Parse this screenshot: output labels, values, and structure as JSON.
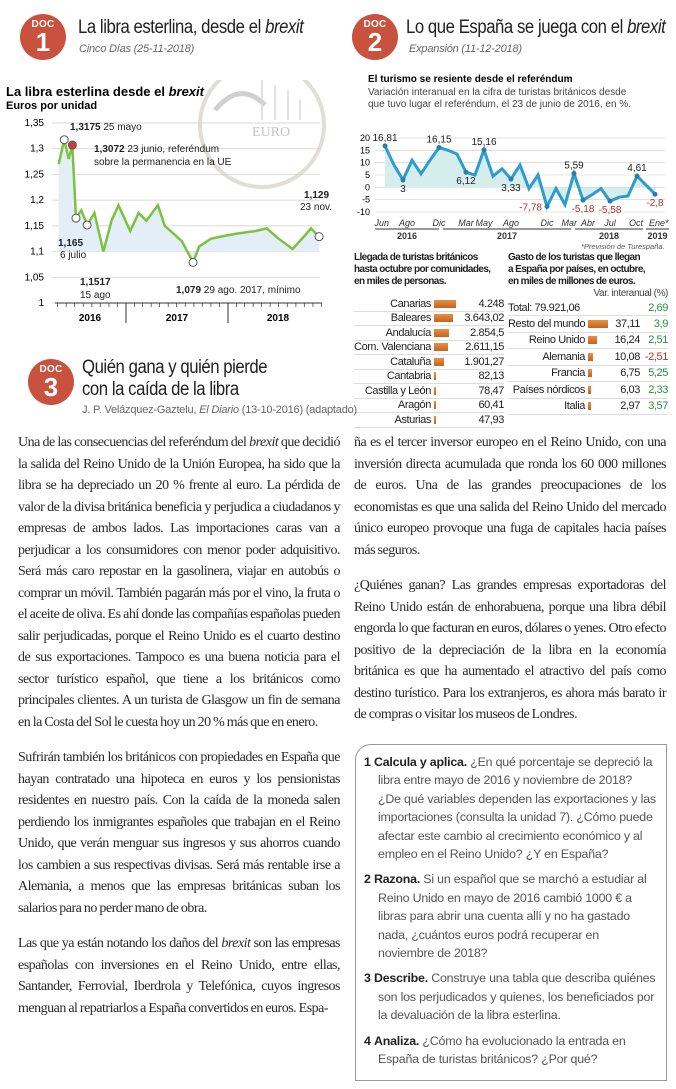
{
  "doc1": {
    "badge": "DOC",
    "number": "1",
    "title": "La libra esterlina, desde el ",
    "title_em": "brexit",
    "source": "Cinco Días (25-11-2018)",
    "chart": {
      "title": "La libra esterlina desde el ",
      "title_em": "brexit",
      "subtitle": "Euros por unidad",
      "yticks": [
        "1,35",
        "1,3",
        "1,25",
        "1,2",
        "1,15",
        "1,1",
        "1,05",
        "1"
      ],
      "years": [
        "2016",
        "2017",
        "2018"
      ],
      "ann": {
        "a1v": "1,3175",
        "a1t": " 25 mayo",
        "a2v": "1,3072",
        "a2t": " 23 junio, referéndum",
        "a2t2": "sobre la permanencia en la UE",
        "a3v": "1,165",
        "a3t": "6 julio",
        "a4v": "1,1517",
        "a4t": "15 ago",
        "a5v": "1,079",
        "a5t": " 29 ago. 2017, mínimo",
        "a6v": "1,129",
        "a6t": "23 nov."
      }
    }
  },
  "doc2": {
    "badge": "DOC",
    "number": "2",
    "title": "Lo que España se juega con el ",
    "title_em": "brexit",
    "source": "Expansión (11-12-2018)",
    "chart": {
      "title": "El turismo se resiente desde el referéndum",
      "subtitle1": "Variación interanual en la cifra de turistas británicos desde",
      "subtitle2": "que tuvo lugar el referéndum, el 23 de junio de 2016, en %.",
      "yticks": [
        "20",
        "15",
        "10",
        "5",
        "0",
        "-5",
        "-10"
      ],
      "months": [
        "Jun",
        "Ago",
        "Dic",
        "Mar",
        "May",
        "Ago",
        "Dic",
        "Mar",
        "Abr",
        "Jul",
        "Oct",
        "Ene*"
      ],
      "years": [
        "2016",
        "2017",
        "2018",
        "2019"
      ],
      "note": "*Previsión de Turespaña.",
      "labels": [
        "16,81",
        "3",
        "16,15",
        "6,12",
        "15,16",
        "3,33",
        "-7,78",
        "5,59",
        "-5,18",
        "-5,58",
        "4,61",
        "-2,8"
      ]
    },
    "table1": {
      "title1": "Llegada de turistas británicos",
      "title2": "hasta octubre por comunidades,",
      "title3": "en miles de personas.",
      "rows": [
        {
          "name": "Canarias",
          "value": "4.248"
        },
        {
          "name": "Baleares",
          "value": "3.643,02"
        },
        {
          "name": "Andalucía",
          "value": "2.854,5"
        },
        {
          "name": "Com. Valenciana",
          "value": "2.611,15"
        },
        {
          "name": "Cataluña",
          "value": "1.901,27"
        },
        {
          "name": "Cantabria",
          "value": "82,13"
        },
        {
          "name": "Castilla y León",
          "value": "78,47"
        },
        {
          "name": "Aragón",
          "value": "60,41"
        },
        {
          "name": "Asturias",
          "value": "47,93"
        }
      ]
    },
    "table2": {
      "title1": "Gasto de los turistas que llegan",
      "title2": "a España por países, en octubre,",
      "title3": "en miles de millones de euros.",
      "var_header": "Var. interanual (%)",
      "total_label": "Total: 79.921,06",
      "total_var": "2,69",
      "rows": [
        {
          "name": "Resto del mundo",
          "value": "37,11",
          "var": "3,9"
        },
        {
          "name": "Reino Unido",
          "value": "16,24",
          "var": "2,51"
        },
        {
          "name": "Alemania",
          "value": "10,08",
          "var": "-2,51"
        },
        {
          "name": "Francia",
          "value": "6,75",
          "var": "5,25"
        },
        {
          "name": "Países nórdicos",
          "value": "6,03",
          "var": "2,33"
        },
        {
          "name": "Italia",
          "value": "2,97",
          "var": "3,57"
        }
      ]
    }
  },
  "doc3": {
    "badge": "DOC",
    "number": "3",
    "title1": "Quién gana y quién pierde",
    "title2": "con la caída de la libra",
    "source_a": "J. P. Velázquez-Gaztelu, ",
    "source_em": "El Diario",
    "source_b": " (13-10-2016) (adaptado)",
    "p1a": "Una de las consecuencias del referéndum del ",
    "p1em": "brexit",
    "p1b": " que decidió la salida del Reino Unido de la Unión Europea, ha sido que la libra se ha depreciado un 20 % frente al euro. La pérdida de valor de la divisa británica beneficia y perjudica a ciudadanos y empresas de ambos lados. Las importaciones caras van a perjudicar a los consumidores con menor poder adquisitivo. Será más caro repostar en la gasolinera, viajar en autobús o comprar un móvil. También pagarán más por el vino, la fruta o el aceite de oliva. Es ahí donde las compañías españolas pueden salir perjudicadas, porque el Reino Unido es el cuarto destino de sus exportaciones. Tampoco es una buena noticia para el sector turístico español, que tiene a los británicos como principales clientes. A un turista de Glasgow un fin de semana en la Costa del Sol le cuesta hoy un 20 % más que en enero.",
    "p2": "Sufrirán también los británicos con propiedades en España que hayan contratado una hipoteca en euros y los pensionistas residentes en nuestro país. Con la caída de la moneda salen perdiendo los inmigrantes españoles que trabajan en el Reino Unido, que verán menguar sus ingresos y sus ahorros cuando los cambien a sus respectivas divisas. Será más rentable irse a Alemania, a menos que las empresas británicas suban los salarios para no perder mano de obra.",
    "p3a": "Las que ya están notando los daños del ",
    "p3em": "brexit",
    "p3b": " son las empresas españolas con inversiones en el Reino Unido, entre ellas, Santander, Ferrovial, Iberdrola y Telefónica, cuyos ingresos menguan al repatriarlos a España convertidos en euros. Espa-",
    "p3c": "ña es el tercer inversor europeo en el Reino Unido, con una inversión directa acumulada que ronda los 60 000 millones de euros. Una de las grandes preocupaciones de los economistas es que una salida del Reino Unido del mercado único europeo provoque una fuga de capitales hacia países más seguros.",
    "p4": "¿Quiénes ganan? Las grandes empresas exportadoras del Reino Unido están de enhorabuena, porque una libra débil engorda lo que facturan en euros, dólares o yenes. Otro efecto positivo de la depreciación de la libra en la economía británica es que ha aumentado el atractivo del país como destino turístico. Para los extranjeros, es ahora más barato ir de compras o visitar los museos de Londres."
  },
  "exercises": [
    {
      "num": "1",
      "verb": "Calcula y aplica.",
      "text": " ¿En qué porcentaje se depreció la libra entre mayo de 2016 y noviembre de 2018? ¿De qué variables dependen las exportaciones y las importaciones (consulta la unidad 7). ¿Cómo puede afectar este cambio al crecimiento económico y al empleo en el Reino Unido? ¿Y en España?"
    },
    {
      "num": "2",
      "verb": "Razona.",
      "text": " Si un español que se marchó a estudiar al Reino Unido en mayo de 2016 cambió 1000 € a libras para abrir una cuenta allí y no ha gastado nada, ¿cuántos euros podrá recuperar en noviembre de 2018?"
    },
    {
      "num": "3",
      "verb": "Describe.",
      "text": " Construye una tabla que describa quiénes son los perjudicados y quienes, los beneficiados por la devaluación de la libra esterlina."
    },
    {
      "num": "4",
      "verb": "Analiza.",
      "text": " ¿Cómo ha evolucionado la entrada en España de turistas británicos? ¿Por qué?"
    }
  ],
  "colors": {
    "badge": "#c8523d",
    "pound_line": "#7cc242",
    "pound_fill": "#e4eef6",
    "tourism_line": "#2e9ccf",
    "tourism_fill": "#d5eeec",
    "bars": "#d9772a",
    "positive": "#2f8a45",
    "negative": "#b2322b",
    "referendum_dot": "#d63a2f"
  },
  "chart_data": [
    {
      "type": "line",
      "title": "La libra esterlina desde el brexit",
      "ylabel": "Euros por unidad",
      "ylim": [
        1,
        1.35
      ],
      "grid": true,
      "x": [
        "2016-05-05",
        "2016-05-25",
        "2016-06-10",
        "2016-06-23",
        "2016-07-06",
        "2016-07-25",
        "2016-08-15",
        "2016-09-10",
        "2016-10-12",
        "2016-11-10",
        "2016-12-05",
        "2017-01-16",
        "2017-02-15",
        "2017-03-15",
        "2017-04-25",
        "2017-05-20",
        "2017-06-20",
        "2017-07-20",
        "2017-08-29",
        "2017-09-20",
        "2017-11-01",
        "2017-12-15",
        "2018-02-01",
        "2018-04-10",
        "2018-05-20",
        "2018-07-01",
        "2018-08-20",
        "2018-10-01",
        "2018-10-25",
        "2018-11-23"
      ],
      "y": [
        1.27,
        1.3175,
        1.28,
        1.3072,
        1.165,
        1.18,
        1.1517,
        1.175,
        1.1,
        1.16,
        1.19,
        1.14,
        1.175,
        1.16,
        1.19,
        1.15,
        1.135,
        1.12,
        1.079,
        1.11,
        1.125,
        1.13,
        1.135,
        1.14,
        1.145,
        1.125,
        1.105,
        1.13,
        1.145,
        1.129
      ]
    },
    {
      "type": "line",
      "title": "El turismo se resiente desde el referéndum",
      "ylabel": "%",
      "ylim": [
        -10,
        20
      ],
      "grid": true,
      "x": [
        "2016-06",
        "2016-07",
        "2016-08",
        "2016-09",
        "2016-10",
        "2016-11",
        "2016-12",
        "2017-01",
        "2017-02",
        "2017-03",
        "2017-04",
        "2017-05",
        "2017-06",
        "2017-07",
        "2017-08",
        "2017-09",
        "2017-10",
        "2017-11",
        "2017-12",
        "2018-01",
        "2018-02",
        "2018-03",
        "2018-04",
        "2018-05",
        "2018-06",
        "2018-07",
        "2018-08",
        "2018-09",
        "2018-10",
        "2018-11",
        "2019-01"
      ],
      "y": [
        16.81,
        9,
        3,
        11,
        5.5,
        11,
        16.15,
        15,
        13.5,
        6.12,
        5,
        15.16,
        4.5,
        7.5,
        3.33,
        9,
        -0.5,
        5,
        -7.78,
        -0.5,
        -7,
        5.59,
        -5.18,
        -3,
        -0.5,
        -5.58,
        -4,
        -3.5,
        4.61,
        null,
        -2.8
      ]
    },
    {
      "type": "bar",
      "title": "Llegada de turistas británicos hasta octubre por comunidades, en miles de personas.",
      "categories": [
        "Canarias",
        "Baleares",
        "Andalucía",
        "Com. Valenciana",
        "Cataluña",
        "Cantabria",
        "Castilla y León",
        "Aragón",
        "Asturias"
      ],
      "values": [
        4248,
        3643.02,
        2854.5,
        2611.15,
        1901.27,
        82.13,
        78.47,
        60.41,
        47.93
      ]
    },
    {
      "type": "bar",
      "title": "Gasto de los turistas que llegan a España por países, en octubre, en miles de millones de euros.",
      "categories": [
        "Resto del mundo",
        "Reino Unido",
        "Alemania",
        "Francia",
        "Países nórdicos",
        "Italia"
      ],
      "values": [
        37.11,
        16.24,
        10.08,
        6.75,
        6.03,
        2.97
      ],
      "var_interanual": [
        3.9,
        2.51,
        -2.51,
        5.25,
        2.33,
        3.57
      ]
    }
  ]
}
